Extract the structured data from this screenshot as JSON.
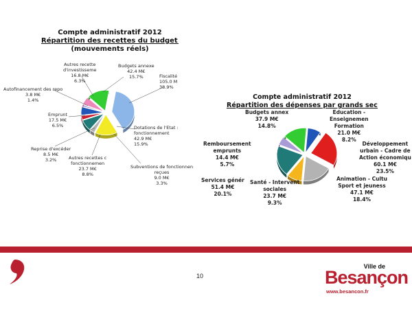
{
  "page_number": "10",
  "brand": {
    "small": "Ville de",
    "main": "Besançon",
    "url": "www.besancon.fr",
    "color": "#b8202f"
  },
  "chart_data": [
    {
      "type": "pie",
      "title_lines": [
        "Compte administratif 2012",
        "Répartition des recettes du budget gén",
        "(mouvements réels)"
      ],
      "slices": [
        {
          "label": [
            "Fiscalité",
            "105.0 M",
            "38.9%"
          ],
          "value": 38.9,
          "color": "#8db6e8",
          "explode": true
        },
        {
          "label": [
            "Dotations de l'Etat :",
            "fonctionnement",
            "42.9 M€",
            "15.9%"
          ],
          "value": 15.9,
          "color": "#f1ea24"
        },
        {
          "label": [
            "Subventions de fonctionnen",
            "reçues",
            "9.0 M€",
            "3.3%"
          ],
          "value": 3.3,
          "color": "#b3b3b3"
        },
        {
          "label": [
            "Autres recettes c",
            "fonctionnemen",
            "23.7 M€",
            "8.8%"
          ],
          "value": 8.8,
          "color": "#1f7a78"
        },
        {
          "label": [
            "Reprise d'excéder",
            "8.5 M€",
            "3.2%"
          ],
          "value": 3.2,
          "color": "#c8202f"
        },
        {
          "label": [
            "Emprunt",
            "17.5 M€",
            "6.5%"
          ],
          "value": 6.5,
          "color": "#1f56b8"
        },
        {
          "label": [
            "Autofinancement des repo",
            "3.8 M€",
            "1.4%"
          ],
          "value": 1.4,
          "color": "#a99cd6"
        },
        {
          "label": [
            "Autres recette",
            "d'investisseme",
            "16.8 M€",
            "6.3%"
          ],
          "value": 6.3,
          "color": "#ee88bb"
        },
        {
          "label": [
            "Budgets annexe",
            "42.4 M€",
            "15.7%"
          ],
          "value": 15.7,
          "color": "#33cc33"
        }
      ]
    },
    {
      "type": "pie",
      "title_lines": [
        "Compte administratif 2012",
        "Répartition des dépenses par grands secteurs d'ac"
      ],
      "slices": [
        {
          "label": [
            "Education -",
            "Enseignemen",
            "Formation",
            "21.0 M€",
            "8.2%"
          ],
          "value": 8.2,
          "color": "#1f56b8"
        },
        {
          "label": [
            "Développement",
            "urbain - Cadre de",
            "Action économiqu",
            "60.1 M€",
            "23.5%"
          ],
          "value": 23.5,
          "color": "#e01e1e",
          "explode": true
        },
        {
          "label": [
            "Animation - Cultu",
            "Sport et jeuness",
            "47.1 M€",
            "18.4%"
          ],
          "value": 18.4,
          "color": "#b3b3b3"
        },
        {
          "label": [
            "Santé - Intervent",
            "sociales",
            "23.7 M€",
            "9.3%"
          ],
          "value": 9.3,
          "color": "#f5b51c"
        },
        {
          "label": [
            "Services génér",
            "51.4 M€",
            "20.1%"
          ],
          "value": 20.1,
          "color": "#1f7a78"
        },
        {
          "label": [
            "Remboursement",
            "emprunts",
            "14.4 M€",
            "5.7%"
          ],
          "value": 5.7,
          "color": "#a99cd6"
        },
        {
          "label": [
            "Budgets annex",
            "37.9 M€",
            "14.8%"
          ],
          "value": 14.8,
          "color": "#33cc33"
        }
      ]
    }
  ]
}
